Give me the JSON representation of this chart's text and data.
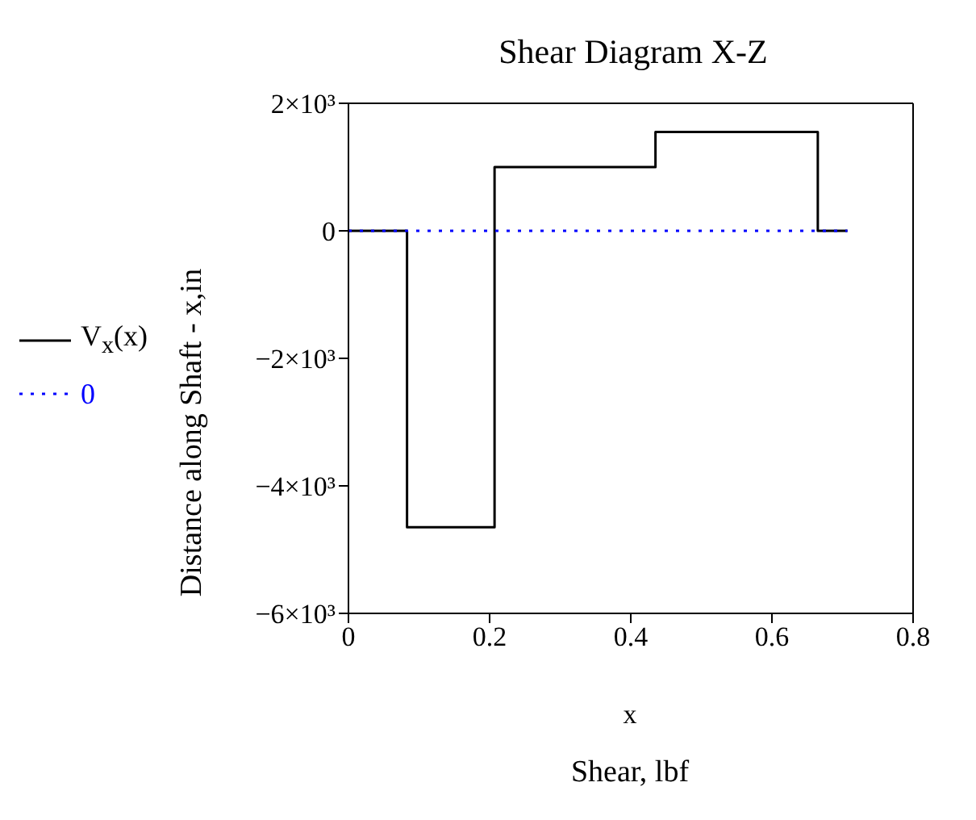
{
  "chart_data": {
    "type": "step",
    "title": "Shear Diagram X-Z",
    "xlabel": "x",
    "ylabel": "Distance along Shaft - x,in",
    "annotations": [
      "Shear, lbf"
    ],
    "series": [
      {
        "name": "V$_{x}$(x)",
        "color": "#000000",
        "line_style": "solid",
        "x": [
          0,
          0.083,
          0.207,
          0.435,
          0.665,
          0.707
        ],
        "values": [
          0,
          -4650,
          1000,
          1550,
          0,
          0
        ]
      },
      {
        "name": "0",
        "color": "#0000ff",
        "line_style": "dotted",
        "x": [
          0,
          0.707
        ],
        "values": [
          0,
          0
        ]
      }
    ],
    "xlim": [
      0,
      0.8
    ],
    "xticks": [
      0,
      0.2,
      0.4,
      0.6,
      0.8
    ],
    "ylim": [
      -6000,
      2000
    ],
    "yticks": [
      {
        "value": 2000,
        "label": "2×10³"
      },
      0,
      {
        "value": -2000,
        "label": "−2×10³"
      },
      {
        "value": -4000,
        "label": "−4×10³"
      },
      {
        "value": -6000,
        "label": "−6×10³"
      }
    ],
    "legend": "left",
    "marker": "none"
  }
}
